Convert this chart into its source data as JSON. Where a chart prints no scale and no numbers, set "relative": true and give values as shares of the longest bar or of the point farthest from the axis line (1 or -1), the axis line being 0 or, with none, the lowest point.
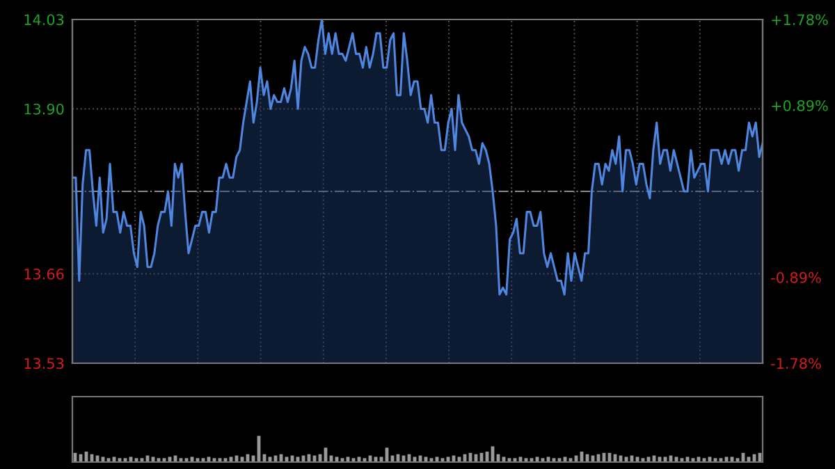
{
  "chart_data": [
    {
      "type": "area",
      "categories": [
        null,
        null,
        null,
        null,
        null,
        null,
        null,
        null,
        null,
        null,
        null,
        null,
        null,
        null,
        null,
        null,
        null,
        null,
        null,
        null,
        null,
        null,
        null,
        null,
        null,
        null,
        null,
        null,
        null,
        null,
        null,
        null,
        null,
        null,
        null,
        null,
        null,
        null,
        null,
        null,
        null,
        null,
        null,
        null,
        null,
        null,
        null,
        null,
        null,
        null,
        null,
        null,
        null,
        null,
        null,
        null,
        null,
        null,
        null,
        null,
        null,
        null,
        null,
        null,
        null,
        null,
        null,
        null,
        null,
        null,
        null,
        null,
        null,
        null,
        null,
        null,
        null,
        null,
        null,
        null,
        null,
        null,
        null,
        null,
        null,
        null,
        null,
        null,
        null,
        null,
        null,
        null,
        null,
        null,
        null,
        null,
        null,
        null,
        null,
        null,
        null,
        null,
        null,
        null,
        null,
        null,
        null,
        null,
        null,
        null,
        null,
        null,
        null,
        null,
        null,
        null,
        null,
        null,
        null,
        null,
        null,
        null,
        null,
        null,
        null,
        null,
        null,
        null,
        null,
        null,
        null,
        null,
        null,
        null,
        null,
        null,
        null,
        null,
        null,
        null,
        null,
        null,
        null,
        null,
        null,
        null,
        null,
        null,
        null,
        null,
        null,
        null,
        null,
        null,
        null,
        null,
        null,
        null,
        null,
        null,
        null,
        null,
        null,
        null,
        null,
        null,
        null,
        null,
        null,
        null,
        null,
        null,
        null,
        null,
        null,
        null,
        null,
        null,
        null,
        null,
        null,
        null,
        null,
        null,
        null,
        null,
        null,
        null,
        null,
        null,
        null,
        null,
        null,
        null,
        null,
        null,
        null,
        null,
        null,
        null,
        null,
        null,
        null
      ],
      "series": [
        {
          "color": "#4f86e0",
          "values": [
            13.8,
            13.8,
            13.65,
            13.79,
            13.84,
            13.84,
            13.78,
            13.73,
            13.8,
            13.72,
            13.74,
            13.82,
            13.75,
            13.75,
            13.72,
            13.75,
            13.73,
            13.73,
            13.69,
            13.67,
            13.75,
            13.73,
            13.67,
            13.67,
            13.69,
            13.73,
            13.75,
            13.75,
            13.78,
            13.73,
            13.82,
            13.8,
            13.82,
            13.75,
            13.69,
            13.71,
            13.73,
            13.73,
            13.75,
            13.75,
            13.72,
            13.75,
            13.75,
            13.8,
            13.8,
            13.82,
            13.8,
            13.8,
            13.83,
            13.84,
            13.88,
            13.91,
            13.94,
            13.88,
            13.91,
            13.96,
            13.92,
            13.94,
            13.9,
            13.92,
            13.91,
            13.91,
            13.93,
            13.91,
            13.93,
            13.97,
            13.9,
            13.97,
            13.99,
            13.98,
            13.96,
            13.96,
            14.0,
            14.03,
            13.98,
            14.01,
            13.98,
            14.01,
            13.98,
            13.98,
            13.97,
            13.99,
            14.01,
            13.98,
            13.98,
            13.96,
            13.99,
            13.96,
            13.98,
            14.01,
            14.01,
            13.96,
            13.96,
            14.0,
            14.01,
            13.92,
            13.92,
            14.01,
            13.97,
            13.92,
            13.94,
            13.94,
            13.9,
            13.9,
            13.88,
            13.92,
            13.88,
            13.88,
            13.84,
            13.84,
            13.88,
            13.9,
            13.84,
            13.92,
            13.88,
            13.87,
            13.86,
            13.84,
            13.84,
            13.82,
            13.85,
            13.84,
            13.82,
            13.78,
            13.73,
            13.63,
            13.64,
            13.63,
            13.71,
            13.72,
            13.74,
            13.69,
            13.69,
            13.75,
            13.75,
            13.73,
            13.73,
            13.75,
            13.69,
            13.67,
            13.69,
            13.67,
            13.65,
            13.65,
            13.63,
            13.69,
            13.65,
            13.69,
            13.67,
            13.65,
            13.69,
            13.69,
            13.78,
            13.82,
            13.82,
            13.79,
            13.82,
            13.81,
            13.84,
            13.82,
            13.86,
            13.78,
            13.84,
            13.84,
            13.82,
            13.79,
            13.82,
            13.82,
            13.79,
            13.77,
            13.84,
            13.88,
            13.82,
            13.84,
            13.84,
            13.81,
            13.84,
            13.82,
            13.8,
            13.78,
            13.78,
            13.84,
            13.8,
            13.81,
            13.82,
            13.82,
            13.78,
            13.84,
            13.84,
            13.84,
            13.82,
            13.84,
            13.82,
            13.84,
            13.84,
            13.81,
            13.84,
            13.84,
            13.88,
            13.86,
            13.88,
            13.83,
            13.85
          ]
        }
      ],
      "ylim": [
        13.53,
        14.03
      ],
      "yticks": [
        14.03,
        {
          "value": 13.9,
          "label": "13.90"
        },
        13.66,
        13.53
      ],
      "y2lim": [
        -1.78,
        1.78
      ],
      "y2ticks": [
        {
          "value": 1.78,
          "label": "+1.78%"
        },
        {
          "value": 0.89,
          "label": "+0.89%"
        },
        {
          "value": -0.89,
          "label": "-0.89%"
        },
        {
          "value": -1.78,
          "label": "-1.78%"
        }
      ],
      "ref_lines": [
        {
          "axis": "y",
          "value": 13.78,
          "label": null,
          "color": "#8a8a8a",
          "line_style": "dashdot"
        }
      ],
      "grid": true,
      "marker": "none",
      "line_style": "solid"
    },
    {
      "type": "bar",
      "relative": true,
      "categories": [
        null,
        null,
        null,
        null,
        null,
        null,
        null,
        null,
        null,
        null,
        null,
        null,
        null,
        null,
        null,
        null,
        null,
        null,
        null,
        null,
        null,
        null,
        null,
        null,
        null,
        null,
        null,
        null,
        null,
        null,
        null,
        null,
        null,
        null,
        null,
        null,
        null,
        null,
        null,
        null,
        null,
        null,
        null,
        null,
        null,
        null,
        null,
        null,
        null,
        null,
        null,
        null,
        null,
        null,
        null,
        null,
        null,
        null,
        null,
        null,
        null,
        null,
        null,
        null,
        null,
        null,
        null,
        null,
        null,
        null,
        null,
        null,
        null,
        null,
        null,
        null,
        null,
        null,
        null,
        null,
        null,
        null,
        null,
        null,
        null,
        null,
        null,
        null,
        null,
        null,
        null,
        null,
        null,
        null,
        null,
        null,
        null,
        null,
        null,
        null,
        null,
        null,
        null,
        null,
        null,
        null,
        null,
        null,
        null,
        null,
        null,
        null,
        null,
        null,
        null,
        null,
        null,
        null,
        null,
        null,
        null,
        null,
        null,
        null
      ],
      "values": [
        0.35,
        0.3,
        0.4,
        0.3,
        0.25,
        0.2,
        0.15,
        0.2,
        0.15,
        0.15,
        0.2,
        0.15,
        0.15,
        0.25,
        0.2,
        0.15,
        0.15,
        0.2,
        0.25,
        0.15,
        0.15,
        0.2,
        0.15,
        0.15,
        0.2,
        0.15,
        0.15,
        0.15,
        0.2,
        0.25,
        0.2,
        0.3,
        0.25,
        1.0,
        0.3,
        0.2,
        0.25,
        0.3,
        0.2,
        0.25,
        0.2,
        0.25,
        0.3,
        0.25,
        0.3,
        0.55,
        0.25,
        0.2,
        0.15,
        0.2,
        0.15,
        0.2,
        0.15,
        0.25,
        0.2,
        0.2,
        0.55,
        0.25,
        0.3,
        0.25,
        0.3,
        0.2,
        0.25,
        0.2,
        0.15,
        0.2,
        0.15,
        0.2,
        0.25,
        0.2,
        0.3,
        0.35,
        0.3,
        0.35,
        0.4,
        0.6,
        0.3,
        0.2,
        0.15,
        0.15,
        0.2,
        0.15,
        0.15,
        0.2,
        0.15,
        0.2,
        0.15,
        0.15,
        0.2,
        0.15,
        0.25,
        0.4,
        0.3,
        0.25,
        0.3,
        0.35,
        0.35,
        0.3,
        0.25,
        0.2,
        0.25,
        0.2,
        0.15,
        0.2,
        0.25,
        0.2,
        0.2,
        0.25,
        0.2,
        0.15,
        0.2,
        0.15,
        0.2,
        0.15,
        0.2,
        0.15,
        0.15,
        0.2,
        0.2,
        0.15,
        0.35,
        0.2,
        0.3,
        0.35
      ],
      "color": "#9a9a9a"
    }
  ]
}
